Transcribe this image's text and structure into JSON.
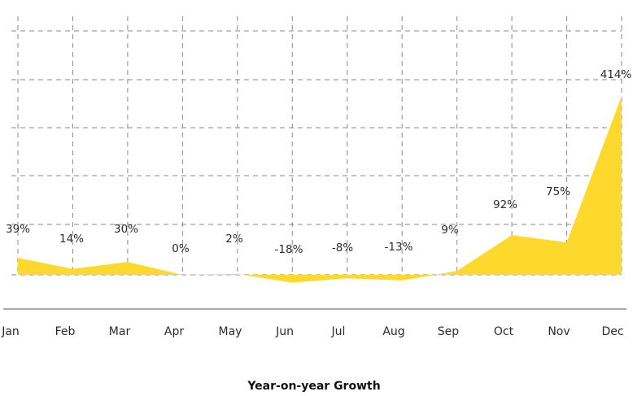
{
  "chart_data": {
    "type": "area",
    "categories": [
      "Jan",
      "Feb",
      "Mar",
      "Apr",
      "May",
      "Jun",
      "Jul",
      "Aug",
      "Sep",
      "Oct",
      "Nov",
      "Dec"
    ],
    "series": [
      {
        "values": [
          39,
          14,
          30,
          0,
          2,
          -18,
          -8,
          -13,
          9,
          92,
          75,
          414
        ],
        "labels": [
          "39%",
          "14%",
          "30%",
          "0%",
          "2%",
          "-18%",
          "-8%",
          "-13%",
          "9%",
          "92%",
          "75%",
          "414%"
        ]
      }
    ],
    "xlabel": "Year-on-year Growth",
    "ylabel": "",
    "ylim": [
      -25,
      425
    ],
    "grid": true,
    "colors": {
      "fill": "#FDD92E",
      "grid": "#8a8a8a",
      "axis": "#555555"
    }
  }
}
